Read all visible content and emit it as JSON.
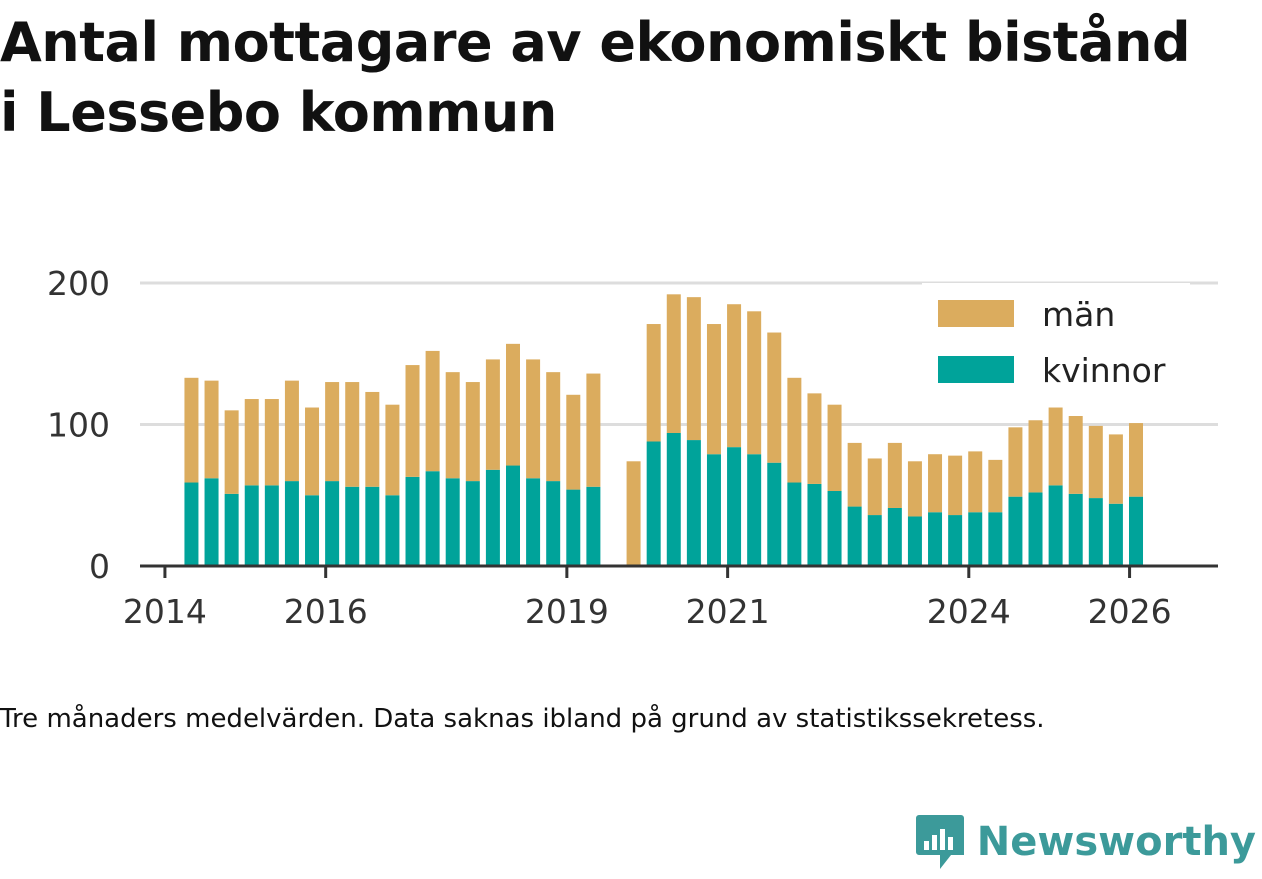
{
  "title_lines": [
    "Antal mottagare av ekonomiskt bistånd",
    "i Lessebo kommun"
  ],
  "caption": "Tre månaders medelvärden. Data saknas ibland på grund av statistikssekretess.",
  "brand": "Newsworthy",
  "colors": {
    "kvinnor": "#00a39a",
    "man": "#dbac5e",
    "brand": "#3c9a9a"
  },
  "chart_data": {
    "type": "bar",
    "stacked": true,
    "title": "Antal mottagare av ekonomiskt bistånd i Lessebo kommun",
    "ylim": [
      0,
      200
    ],
    "yticks": [
      0,
      100,
      200
    ],
    "grid": true,
    "legend_position": "top-right",
    "xticks": [
      {
        "label": "2014",
        "x": 2014.0
      },
      {
        "label": "2016",
        "x": 2016.0
      },
      {
        "label": "2019",
        "x": 2019.0
      },
      {
        "label": "2021",
        "x": 2021.0
      },
      {
        "label": "2024",
        "x": 2024.0
      },
      {
        "label": "2026",
        "x": 2026.0
      }
    ],
    "x": [
      2014.33,
      2014.58,
      2014.83,
      2015.08,
      2015.33,
      2015.58,
      2015.83,
      2016.08,
      2016.33,
      2016.58,
      2016.83,
      2017.08,
      2017.33,
      2017.58,
      2017.83,
      2018.08,
      2018.33,
      2018.58,
      2018.83,
      2019.08,
      2019.33,
      2019.83,
      2020.08,
      2020.33,
      2020.58,
      2020.83,
      2021.08,
      2021.33,
      2021.58,
      2021.83,
      2022.08,
      2022.33,
      2022.58,
      2022.83,
      2023.08,
      2023.33,
      2023.58,
      2023.83,
      2024.08,
      2024.33,
      2024.58,
      2024.83,
      2025.08,
      2025.33,
      2025.58,
      2025.83,
      2026.08
    ],
    "series": [
      {
        "name": "kvinnor",
        "color": "#00a39a",
        "values": [
          59,
          62,
          51,
          57,
          57,
          60,
          50,
          60,
          56,
          56,
          50,
          63,
          67,
          62,
          60,
          68,
          71,
          62,
          60,
          54,
          56,
          0,
          88,
          94,
          89,
          79,
          84,
          79,
          73,
          59,
          58,
          53,
          42,
          36,
          41,
          35,
          38,
          36,
          38,
          38,
          49,
          52,
          57,
          51,
          48,
          44,
          49
        ]
      },
      {
        "name": "män",
        "color": "#dbac5e",
        "values": [
          74,
          69,
          59,
          61,
          61,
          71,
          62,
          70,
          74,
          67,
          64,
          79,
          85,
          75,
          70,
          78,
          86,
          84,
          77,
          67,
          80,
          74,
          83,
          98,
          101,
          92,
          101,
          101,
          92,
          74,
          64,
          61,
          45,
          40,
          46,
          39,
          41,
          42,
          43,
          37,
          49,
          51,
          55,
          55,
          51,
          49,
          52
        ]
      }
    ]
  },
  "legend": [
    {
      "key": "man",
      "label": "män"
    },
    {
      "key": "kvinnor",
      "label": "kvinnor"
    }
  ]
}
